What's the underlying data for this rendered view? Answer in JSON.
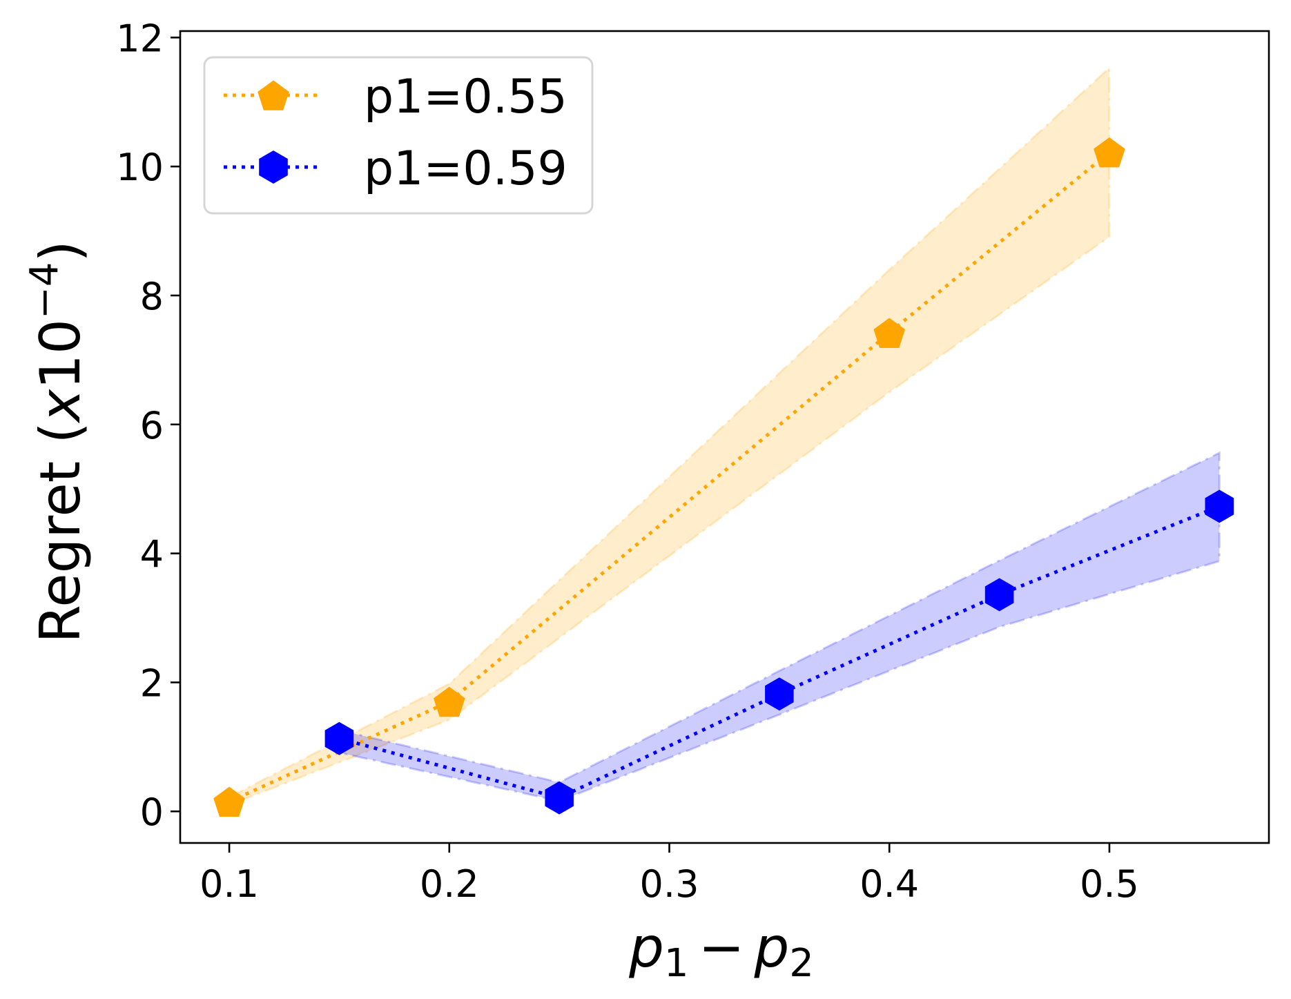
{
  "chart_data": {
    "type": "line",
    "title": "",
    "xlabel": "p1 - p2",
    "xlabel_parts": {
      "var1": "p",
      "sub1": "1",
      "op": "−",
      "var2": "p",
      "sub2": "2"
    },
    "ylabel": "Regret (x10^-4)",
    "ylabel_parts": {
      "prefix": "Regret (",
      "x": "x",
      "base": "10",
      "exp": "−4",
      "suffix": ")"
    },
    "xlim": [
      0.0777,
      0.5725
    ],
    "ylim": [
      -0.49,
      12.1
    ],
    "xticks": [
      0.1,
      0.2,
      0.3,
      0.4,
      0.5
    ],
    "xtick_labels": [
      "0.1",
      "0.2",
      "0.3",
      "0.4",
      "0.5"
    ],
    "yticks": [
      0,
      2,
      4,
      6,
      8,
      10,
      12
    ],
    "ytick_labels": [
      "0",
      "2",
      "4",
      "6",
      "8",
      "10",
      "12"
    ],
    "grid": false,
    "legend_position": "top-left",
    "series": [
      {
        "name": "p1=0.55",
        "color": "#FFA500",
        "band_color": "#FFA500",
        "marker": "pentagon",
        "linestyle": "dotted",
        "x": [
          0.1,
          0.2,
          0.4,
          0.5
        ],
        "y": [
          0.15,
          1.7,
          7.42,
          10.22
        ],
        "lower": [
          0.1,
          1.42,
          6.5,
          8.91
        ],
        "upper": [
          0.22,
          1.98,
          8.4,
          11.53
        ]
      },
      {
        "name": "p1=0.59",
        "color": "#0000FF",
        "band_color": "#0000FF",
        "marker": "hexagon",
        "linestyle": "dotted",
        "x": [
          0.15,
          0.25,
          0.35,
          0.45,
          0.55
        ],
        "y": [
          1.13,
          0.21,
          1.82,
          3.36,
          4.73
        ],
        "lower": [
          0.91,
          0.16,
          1.5,
          2.86,
          3.88
        ],
        "upper": [
          1.26,
          0.45,
          2.18,
          3.89,
          5.56
        ]
      }
    ]
  }
}
